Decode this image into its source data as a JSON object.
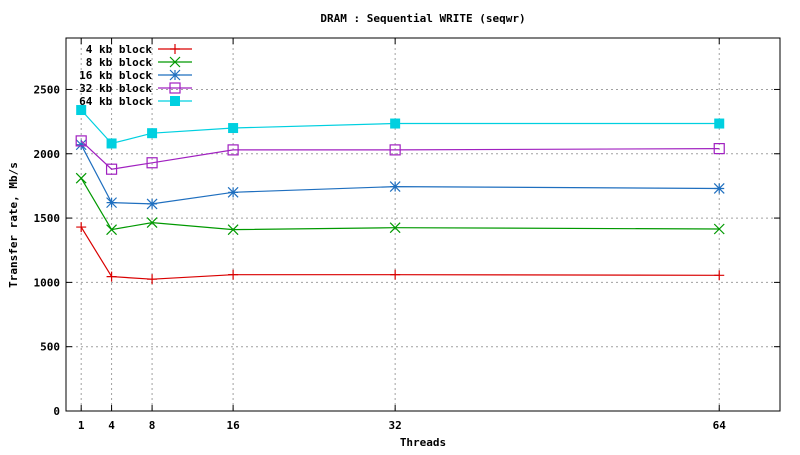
{
  "chart_data": {
    "type": "line",
    "title": "DRAM : Sequential WRITE (seqwr)",
    "xlabel": "Threads",
    "ylabel": "Transfer rate, Mb/s",
    "x": [
      1,
      4,
      8,
      16,
      32,
      64
    ],
    "xticks": [
      "1",
      "4",
      "8",
      "16",
      "32",
      "64"
    ],
    "xlim": [
      -0.5,
      70
    ],
    "yticks": [
      "0",
      "500",
      "1000",
      "1500",
      "2000",
      "2500"
    ],
    "ylim": [
      0,
      2900
    ],
    "grid": true,
    "legend_position": "top-left",
    "series": [
      {
        "name": "4 kb block",
        "color": "#d90000",
        "marker": "plus",
        "values": [
          1430,
          1045,
          1025,
          1060,
          1060,
          1055
        ]
      },
      {
        "name": "8 kb block",
        "color": "#009900",
        "marker": "cross",
        "values": [
          1810,
          1410,
          1465,
          1410,
          1425,
          1415
        ]
      },
      {
        "name": "16 kb block",
        "color": "#1f6fbf",
        "marker": "star",
        "values": [
          2070,
          1620,
          1610,
          1700,
          1745,
          1730
        ]
      },
      {
        "name": "32 kb block",
        "color": "#a020c0",
        "marker": "square-open",
        "values": [
          2100,
          1880,
          1930,
          2030,
          2030,
          2040
        ]
      },
      {
        "name": "64 kb block",
        "color": "#00d0e0",
        "marker": "square-filled",
        "values": [
          2340,
          2080,
          2160,
          2200,
          2235,
          2235
        ]
      }
    ]
  }
}
